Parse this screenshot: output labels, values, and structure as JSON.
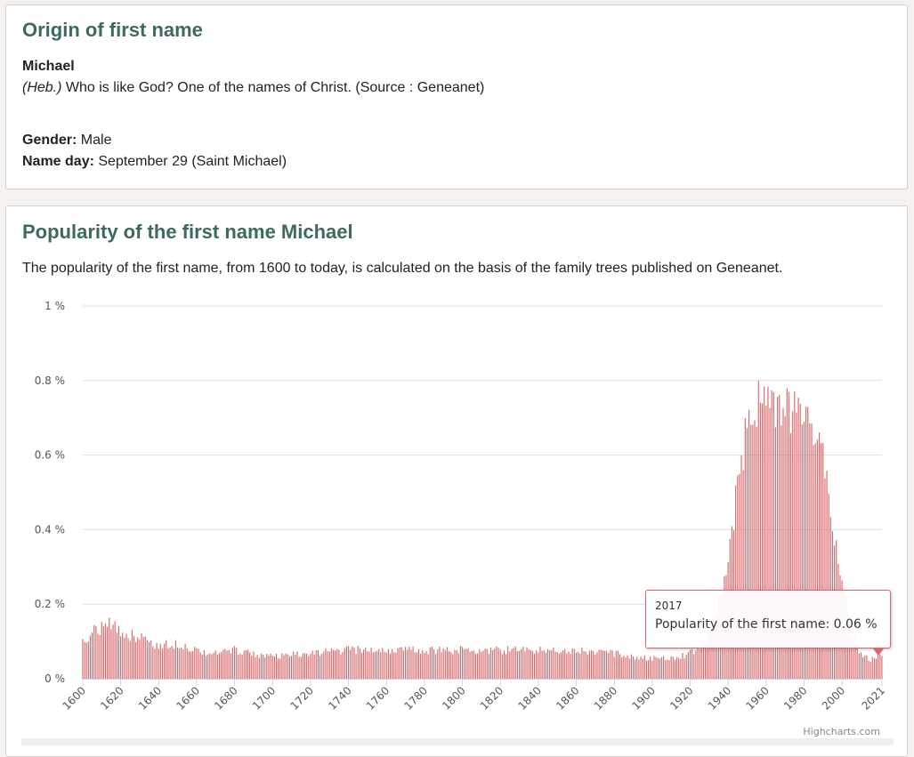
{
  "origin": {
    "title": "Origin of first name",
    "name": "Michael",
    "etymology_prefix": "(Heb.)",
    "etymology_text": " Who is like God? One of the names of Christ. (Source : Geneanet)",
    "gender_label": "Gender:",
    "gender_value": " Male",
    "nameday_label": "Name day:",
    "nameday_value": " September 29 (Saint Michael)"
  },
  "popularity": {
    "title": "Popularity of the first name Michael",
    "description": "The popularity of the first name, from 1600 to today, is calculated on the basis of the family trees published on Geneanet.",
    "credit": "Highcharts.com",
    "tooltip": {
      "year": "2017",
      "label": "Popularity of the first name: ",
      "value": "0.06 %"
    }
  },
  "colors": {
    "title": "#3d6b5a",
    "bar": "#d9696b",
    "grid": "#dddddd"
  },
  "chart_data": {
    "type": "bar",
    "title": "",
    "xlabel": "",
    "ylabel": "",
    "x_range": [
      1600,
      2021
    ],
    "ylim": [
      0,
      1
    ],
    "y_ticks": [
      "0 %",
      "0.2 %",
      "0.4 %",
      "0.6 %",
      "0.8 %",
      "1 %"
    ],
    "y_tick_values": [
      0,
      0.2,
      0.4,
      0.6,
      0.8,
      1.0
    ],
    "x_ticks": [
      "1600",
      "1620",
      "1640",
      "1660",
      "1680",
      "1700",
      "1720",
      "1740",
      "1760",
      "1780",
      "1800",
      "1820",
      "1840",
      "1860",
      "1880",
      "1900",
      "1920",
      "1940",
      "1960",
      "1980",
      "2000",
      "2021"
    ],
    "grid": true,
    "legend": "none",
    "series": [
      {
        "anchors_year": [
          1600,
          1605,
          1610,
          1615,
          1620,
          1625,
          1630,
          1640,
          1650,
          1660,
          1670,
          1680,
          1690,
          1700,
          1720,
          1740,
          1760,
          1780,
          1800,
          1820,
          1840,
          1860,
          1880,
          1900,
          1910,
          1920,
          1925,
          1930,
          1935,
          1940,
          1943,
          1946,
          1950,
          1953,
          1956,
          1960,
          1965,
          1970,
          1975,
          1980,
          1985,
          1990,
          1993,
          1996,
          2000,
          2005,
          2010,
          2015,
          2017,
          2021
        ],
        "anchors_value": [
          0.1,
          0.13,
          0.14,
          0.15,
          0.13,
          0.12,
          0.12,
          0.09,
          0.1,
          0.08,
          0.07,
          0.08,
          0.07,
          0.06,
          0.07,
          0.08,
          0.08,
          0.08,
          0.08,
          0.08,
          0.08,
          0.08,
          0.07,
          0.055,
          0.06,
          0.07,
          0.09,
          0.12,
          0.2,
          0.32,
          0.45,
          0.55,
          0.7,
          0.72,
          0.78,
          0.76,
          0.74,
          0.74,
          0.72,
          0.75,
          0.7,
          0.6,
          0.53,
          0.4,
          0.25,
          0.13,
          0.07,
          0.05,
          0.06,
          0.06
        ]
      }
    ]
  }
}
